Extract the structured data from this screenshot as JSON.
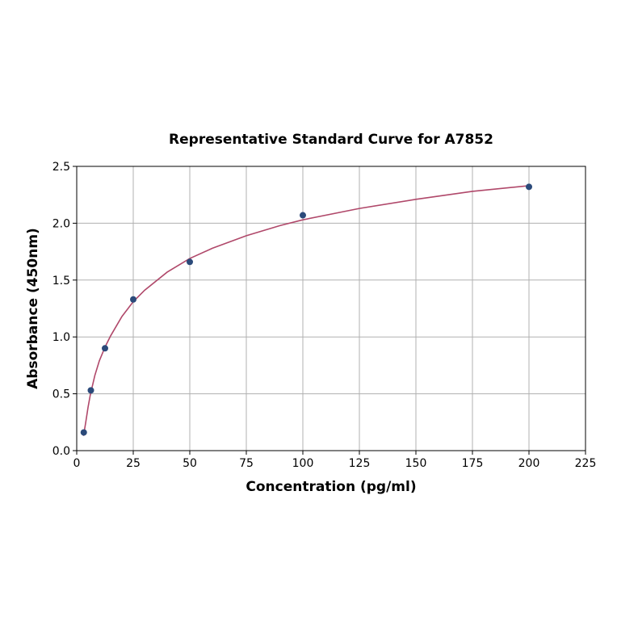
{
  "chart_data": {
    "type": "scatter",
    "title": "Representative Standard Curve for A7852",
    "xlabel": "Concentration (pg/ml)",
    "ylabel": "Absorbance (450nm)",
    "xlim": [
      0,
      225
    ],
    "ylim": [
      0,
      2.5
    ],
    "xticks": [
      "0",
      "25",
      "50",
      "75",
      "100",
      "125",
      "150",
      "175",
      "200",
      "225"
    ],
    "yticks": [
      "0.0",
      "0.5",
      "1.0",
      "1.5",
      "2.0",
      "2.5"
    ],
    "grid": true,
    "legend": "none",
    "series": [
      {
        "kind": "points",
        "x": [
          3.125,
          6.25,
          12.5,
          25,
          50,
          100,
          200
        ],
        "y": [
          0.16,
          0.53,
          0.9,
          1.33,
          1.66,
          2.07,
          2.32
        ],
        "color": "#2b4a7a"
      },
      {
        "kind": "fitted-curve",
        "x": [
          3,
          4,
          5,
          6,
          8,
          10,
          12.5,
          15,
          20,
          25,
          30,
          40,
          50,
          60,
          75,
          90,
          100,
          125,
          150,
          175,
          200
        ],
        "y": [
          0.13,
          0.25,
          0.38,
          0.49,
          0.66,
          0.79,
          0.91,
          1.01,
          1.18,
          1.31,
          1.41,
          1.57,
          1.69,
          1.78,
          1.89,
          1.98,
          2.03,
          2.13,
          2.21,
          2.28,
          2.33
        ],
        "color": "#b0486a"
      }
    ]
  }
}
